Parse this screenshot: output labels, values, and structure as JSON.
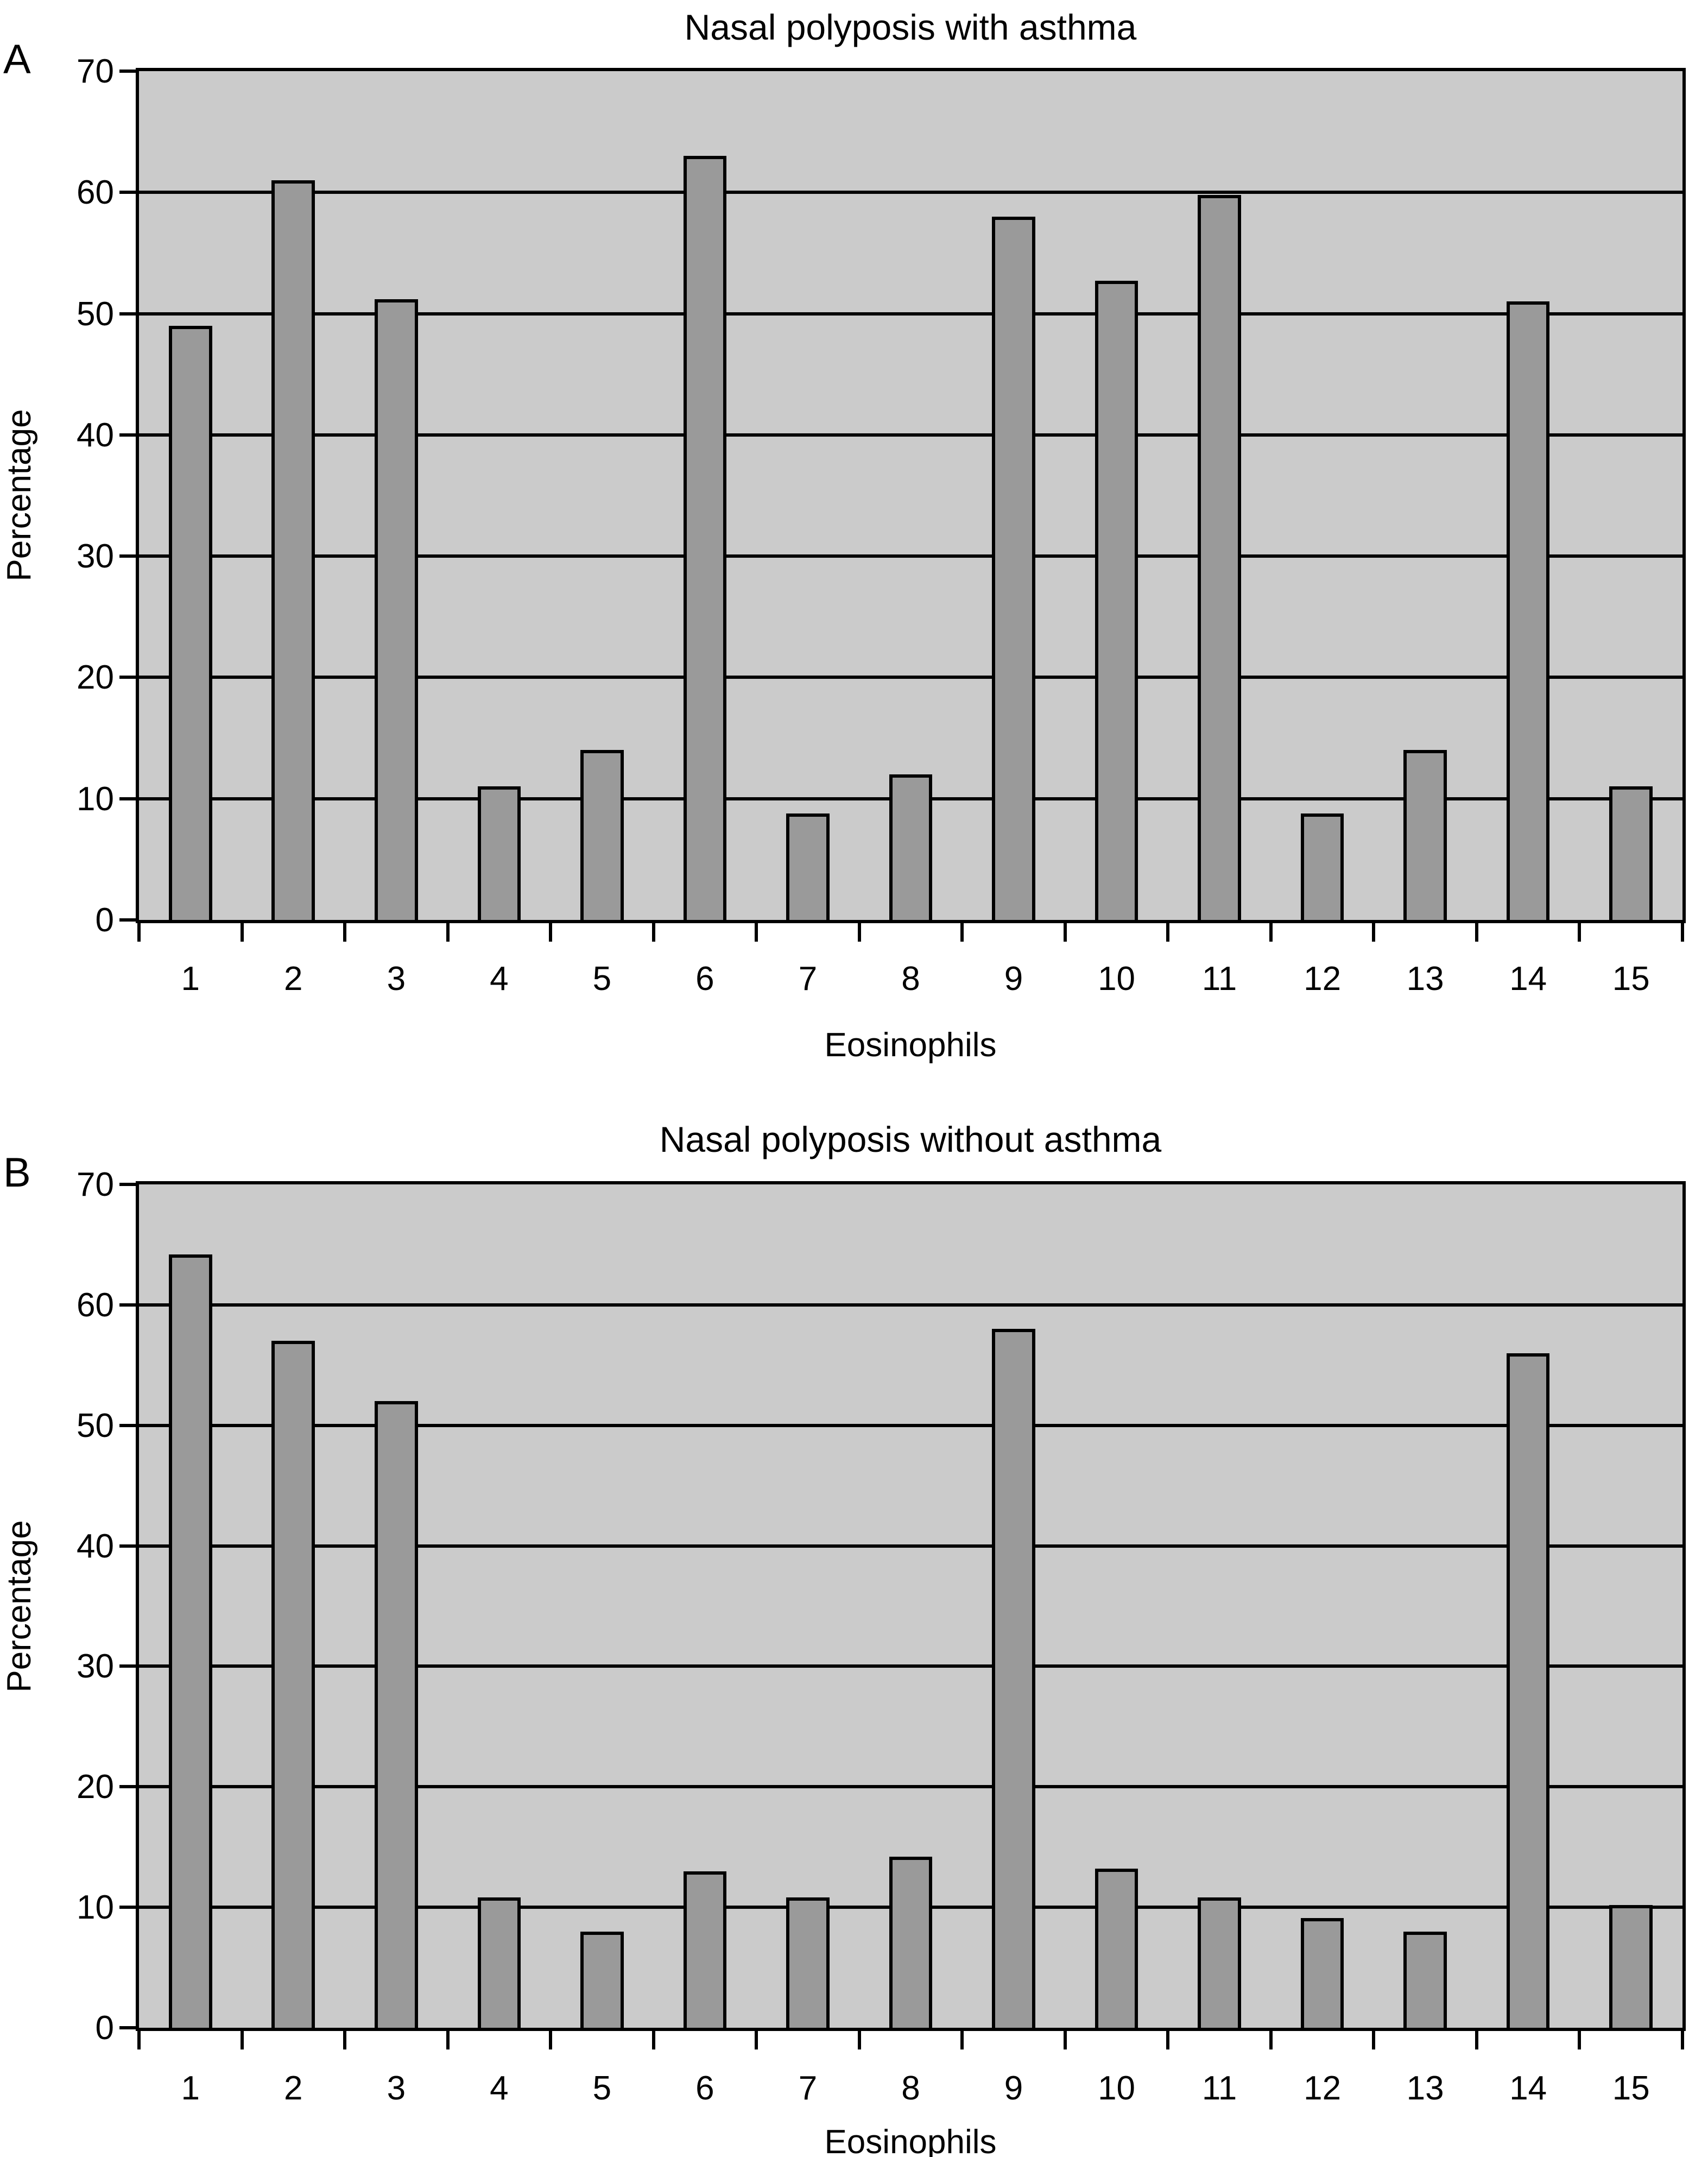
{
  "figure": {
    "panels": [
      {
        "letter": "A"
      },
      {
        "letter": "B"
      }
    ]
  },
  "chart_data": [
    {
      "type": "bar",
      "title": "Nasal polyposis with asthma",
      "xlabel": "Eosinophils",
      "ylabel": "Percentage",
      "categories": [
        "1",
        "2",
        "3",
        "4",
        "5",
        "6",
        "7",
        "8",
        "9",
        "10",
        "11",
        "12",
        "13",
        "14",
        "15"
      ],
      "values": [
        49,
        61,
        51.2,
        11,
        14,
        63,
        8.8,
        12,
        58,
        52.7,
        59.8,
        8.8,
        14,
        51,
        11
      ],
      "ylim": [
        0,
        70
      ],
      "ytick_step": 10,
      "grid": true,
      "legend_position": "none",
      "plot_bg_color": "#cbcbcb",
      "bar_fill_color": "#9a9a9a",
      "bar_border_color": "#000000"
    },
    {
      "type": "bar",
      "title": "Nasal polyposis without asthma",
      "xlabel": "Eosinophils",
      "ylabel": "Percentage",
      "categories": [
        "1",
        "2",
        "3",
        "4",
        "5",
        "6",
        "7",
        "8",
        "9",
        "10",
        "11",
        "12",
        "13",
        "14",
        "15"
      ],
      "values": [
        64.2,
        57,
        52,
        10.8,
        8,
        13,
        10.8,
        14.2,
        58,
        13.2,
        10.8,
        9.1,
        8,
        56,
        10.2
      ],
      "ylim": [
        0,
        70
      ],
      "ytick_step": 10,
      "grid": true,
      "legend_position": "none",
      "plot_bg_color": "#cbcbcb",
      "bar_fill_color": "#9a9a9a",
      "bar_border_color": "#000000"
    }
  ]
}
